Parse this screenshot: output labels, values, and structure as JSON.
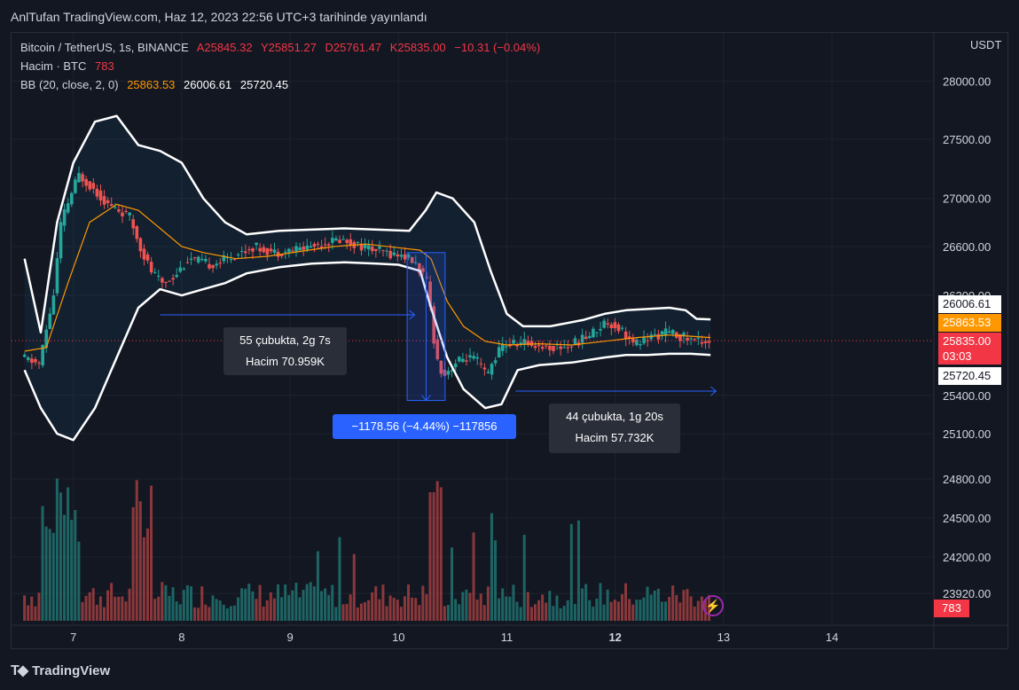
{
  "header": {
    "publication": "AnlTufan TradingView.com, Haz 12, 2023 22:56 UTC+3 tarihinde yayınlandı"
  },
  "legend": {
    "symbol": "Bitcoin / TetherUS, 1s, BINANCE",
    "open": "A25845.32",
    "high": "Y25851.27",
    "low": "D25761.47",
    "close": "K25835.00",
    "change": "−10.31 (−0.04%)",
    "volume_label": "Hacim · BTC",
    "volume_value": "783",
    "bb_label": "BB (20, close, 2, 0)",
    "bb_basis": "25863.53",
    "bb_upper": "26006.61",
    "bb_lower": "25720.45"
  },
  "price_scale": {
    "currency": "USDT"
  },
  "tags": {
    "upper": "26006.61",
    "basis": "25863.53",
    "last_price": "25835.00",
    "countdown": "03:03",
    "lower": "25720.45",
    "volume": "783"
  },
  "annotations": {
    "range1_line1": "55 çubukta, 2g 7s",
    "range1_line2": "Hacim 70.959K",
    "measure": "−1178.56 (−4.44%) −117856",
    "range2_line1": "44 çubukta, 1g 20s",
    "range2_line2": "Hacim 57.732K"
  },
  "footer": {
    "brand": "TradingView"
  },
  "colors": {
    "up": "#26a69a",
    "down": "#ef5350",
    "bb_band": "#ffffff",
    "bb_basis": "#ff9800",
    "measure": "#2962ff"
  },
  "chart_data": {
    "type": "candlestick",
    "x_tick_labels": [
      "7",
      "8",
      "9",
      "10",
      "11",
      "12",
      "13",
      "14"
    ],
    "y_tick_labels": [
      "28000.00",
      "27500.00",
      "27000.00",
      "26600.00",
      "26200.00",
      "25400.00",
      "25100.00",
      "24800.00",
      "24500.00",
      "24200.00",
      "23920.00"
    ],
    "ylim": [
      23750,
      28400
    ],
    "y_scale": "log",
    "close_path": [
      [
        6.55,
        25700
      ],
      [
        6.72,
        25650
      ],
      [
        6.85,
        26200
      ],
      [
        6.92,
        26800
      ],
      [
        7.0,
        27000
      ],
      [
        7.08,
        27200
      ],
      [
        7.2,
        27100
      ],
      [
        7.35,
        26950
      ],
      [
        7.55,
        26850
      ],
      [
        7.65,
        26600
      ],
      [
        7.75,
        26400
      ],
      [
        7.85,
        26300
      ],
      [
        7.95,
        26350
      ],
      [
        8.1,
        26500
      ],
      [
        8.3,
        26450
      ],
      [
        8.5,
        26520
      ],
      [
        8.7,
        26600
      ],
      [
        8.9,
        26550
      ],
      [
        9.1,
        26580
      ],
      [
        9.3,
        26620
      ],
      [
        9.5,
        26660
      ],
      [
        9.7,
        26600
      ],
      [
        9.9,
        26550
      ],
      [
        10.1,
        26520
      ],
      [
        10.2,
        26450
      ],
      [
        10.3,
        26300
      ],
      [
        10.38,
        25700
      ],
      [
        10.45,
        25560
      ],
      [
        10.55,
        25650
      ],
      [
        10.65,
        25700
      ],
      [
        10.75,
        25680
      ],
      [
        10.85,
        25550
      ],
      [
        10.92,
        25700
      ],
      [
        11.0,
        25800
      ],
      [
        11.2,
        25820
      ],
      [
        11.4,
        25780
      ],
      [
        11.6,
        25790
      ],
      [
        11.8,
        25880
      ],
      [
        11.95,
        25990
      ],
      [
        12.1,
        25920
      ],
      [
        12.2,
        25800
      ],
      [
        12.35,
        25860
      ],
      [
        12.5,
        25900
      ],
      [
        12.6,
        25880
      ],
      [
        12.75,
        25840
      ],
      [
        12.88,
        25835
      ]
    ],
    "bb_basis_path": [
      [
        6.55,
        25750
      ],
      [
        6.75,
        25780
      ],
      [
        6.95,
        26300
      ],
      [
        7.15,
        26800
      ],
      [
        7.4,
        26950
      ],
      [
        7.6,
        26900
      ],
      [
        7.8,
        26750
      ],
      [
        8.0,
        26600
      ],
      [
        8.2,
        26550
      ],
      [
        8.5,
        26500
      ],
      [
        8.8,
        26520
      ],
      [
        9.1,
        26560
      ],
      [
        9.4,
        26600
      ],
      [
        9.7,
        26620
      ],
      [
        10.0,
        26590
      ],
      [
        10.2,
        26570
      ],
      [
        10.3,
        26500
      ],
      [
        10.45,
        26150
      ],
      [
        10.6,
        25950
      ],
      [
        10.8,
        25830
      ],
      [
        11.0,
        25800
      ],
      [
        11.3,
        25810
      ],
      [
        11.6,
        25800
      ],
      [
        11.9,
        25830
      ],
      [
        12.2,
        25860
      ],
      [
        12.5,
        25880
      ],
      [
        12.7,
        25870
      ],
      [
        12.88,
        25860
      ]
    ],
    "bb_upper_path": [
      [
        6.55,
        26500
      ],
      [
        6.7,
        25900
      ],
      [
        6.85,
        26800
      ],
      [
        7.0,
        27300
      ],
      [
        7.2,
        27650
      ],
      [
        7.4,
        27700
      ],
      [
        7.6,
        27450
      ],
      [
        7.8,
        27400
      ],
      [
        8.0,
        27300
      ],
      [
        8.2,
        27000
      ],
      [
        8.4,
        26800
      ],
      [
        8.6,
        26700
      ],
      [
        8.9,
        26730
      ],
      [
        9.2,
        26740
      ],
      [
        9.5,
        26750
      ],
      [
        9.8,
        26740
      ],
      [
        10.1,
        26730
      ],
      [
        10.25,
        26900
      ],
      [
        10.35,
        27050
      ],
      [
        10.5,
        27000
      ],
      [
        10.7,
        26800
      ],
      [
        10.85,
        26400
      ],
      [
        11.0,
        26050
      ],
      [
        11.15,
        25950
      ],
      [
        11.4,
        25950
      ],
      [
        11.7,
        26000
      ],
      [
        11.9,
        26050
      ],
      [
        12.1,
        26080
      ],
      [
        12.3,
        26090
      ],
      [
        12.5,
        26100
      ],
      [
        12.65,
        26080
      ],
      [
        12.75,
        26010
      ],
      [
        12.88,
        26006
      ]
    ],
    "bb_lower_path": [
      [
        6.55,
        25600
      ],
      [
        6.7,
        25300
      ],
      [
        6.85,
        25100
      ],
      [
        7.0,
        25050
      ],
      [
        7.2,
        25300
      ],
      [
        7.4,
        25700
      ],
      [
        7.6,
        26100
      ],
      [
        7.8,
        26250
      ],
      [
        8.0,
        26200
      ],
      [
        8.2,
        26250
      ],
      [
        8.4,
        26300
      ],
      [
        8.6,
        26380
      ],
      [
        8.9,
        26430
      ],
      [
        9.2,
        26460
      ],
      [
        9.5,
        26470
      ],
      [
        9.8,
        26460
      ],
      [
        10.0,
        26450
      ],
      [
        10.2,
        26400
      ],
      [
        10.3,
        26100
      ],
      [
        10.45,
        25700
      ],
      [
        10.6,
        25450
      ],
      [
        10.8,
        25300
      ],
      [
        10.95,
        25330
      ],
      [
        11.1,
        25600
      ],
      [
        11.3,
        25640
      ],
      [
        11.6,
        25660
      ],
      [
        11.9,
        25700
      ],
      [
        12.1,
        25720
      ],
      [
        12.3,
        25720
      ],
      [
        12.5,
        25730
      ],
      [
        12.7,
        25730
      ],
      [
        12.88,
        25720
      ]
    ]
  }
}
